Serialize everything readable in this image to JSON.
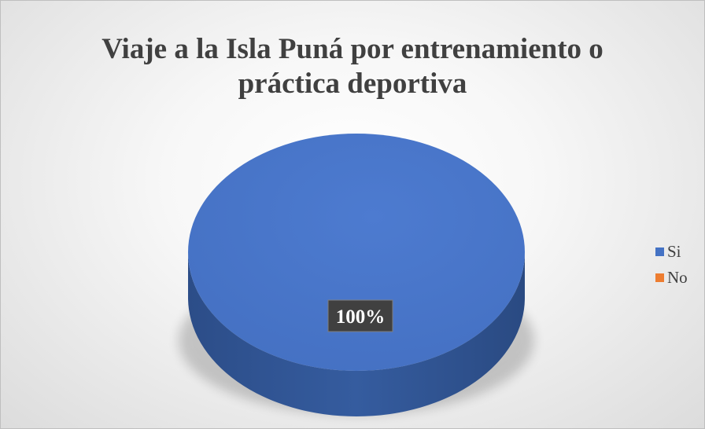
{
  "chart_data": {
    "type": "pie",
    "title": "Viaje a la Isla Puná por entrenamiento o práctica deportiva",
    "title_lines": [
      "Viaje a la Isla Puná por entrenamiento o",
      "práctica deportiva"
    ],
    "categories": [
      "Si",
      "No"
    ],
    "values": [
      100,
      0
    ],
    "data_labels": [
      "100%"
    ],
    "colors": [
      "#4472c4",
      "#ed7d31"
    ],
    "style": "3d",
    "legend_position": "right"
  }
}
